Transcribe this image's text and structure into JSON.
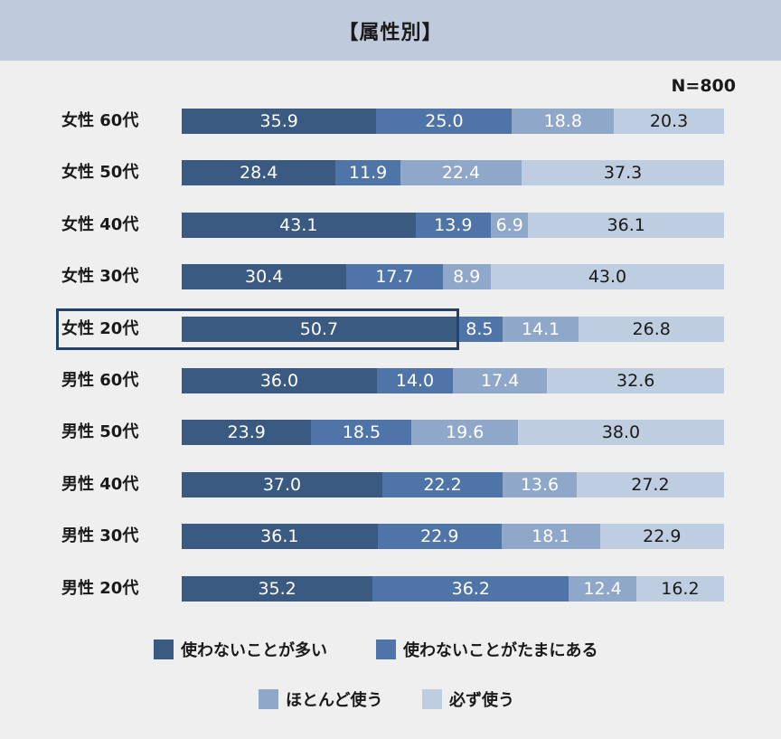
{
  "title": "【属性別】",
  "n_label": "N=800",
  "chart_data": {
    "type": "bar",
    "orientation": "horizontal",
    "stacked": true,
    "categories": [
      "女性 60代",
      "女性 50代",
      "女性 40代",
      "女性 30代",
      "女性 20代",
      "男性 60代",
      "男性 50代",
      "男性 40代",
      "男性 30代",
      "男性 20代"
    ],
    "series": [
      {
        "name": "使わないことが多い",
        "color": "#3a5a82",
        "text_color": "#ffffff",
        "values": [
          35.9,
          28.4,
          43.1,
          30.4,
          50.7,
          36.0,
          23.9,
          37.0,
          36.1,
          35.2
        ]
      },
      {
        "name": "使わないことがたまにある",
        "color": "#4f74a8",
        "text_color": "#ffffff",
        "values": [
          25.0,
          11.9,
          13.9,
          17.7,
          8.5,
          14.0,
          18.5,
          22.2,
          22.9,
          36.2
        ]
      },
      {
        "name": "ほとんど使う",
        "color": "#8fa7c8",
        "text_color": "#ffffff",
        "values": [
          18.8,
          22.4,
          6.9,
          8.9,
          14.1,
          17.4,
          19.6,
          13.6,
          18.1,
          12.4
        ]
      },
      {
        "name": "必ず使う",
        "color": "#bfcde0",
        "text_color": "#1a1a1a",
        "values": [
          20.3,
          37.3,
          36.1,
          43.0,
          26.8,
          32.6,
          38.0,
          27.2,
          22.9,
          16.2
        ]
      }
    ],
    "labels": [
      [
        "35.9",
        "25.0",
        "18.8",
        "20.3"
      ],
      [
        "28.4",
        "11.9",
        "22.4",
        "37.3"
      ],
      [
        "43.1",
        "13.9",
        "6.9",
        "36.1"
      ],
      [
        "30.4",
        "17.7",
        "8.9",
        "43.0"
      ],
      [
        "50.7",
        "8.5",
        "14.1",
        "26.8"
      ],
      [
        "36.0",
        "14.0",
        "17.4",
        "32.6"
      ],
      [
        "23.9",
        "18.5",
        "19.6",
        "38.0"
      ],
      [
        "37.0",
        "22.2",
        "13.6",
        "27.2"
      ],
      [
        "36.1",
        "22.9",
        "18.1",
        "22.9"
      ],
      [
        "35.2",
        "36.2",
        "12.4",
        "16.2"
      ]
    ],
    "highlighted_category": "女性 20代",
    "legend_position": "bottom",
    "grid": false
  }
}
